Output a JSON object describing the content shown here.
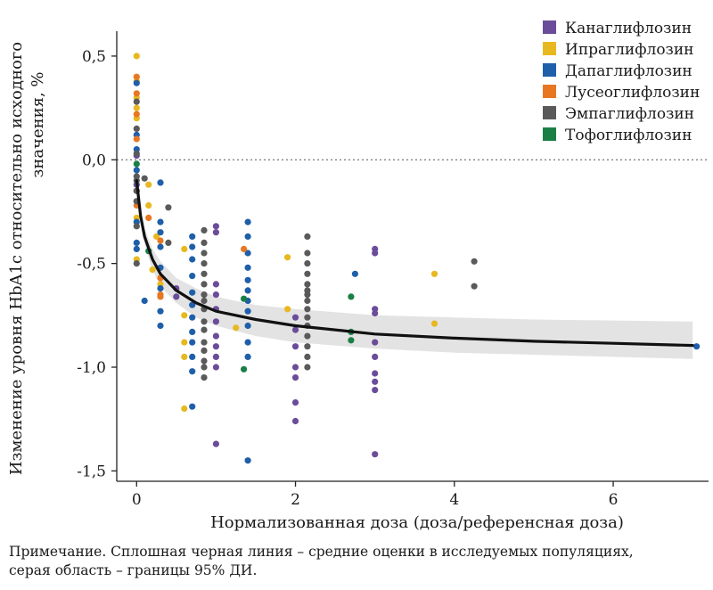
{
  "chart_data": {
    "type": "scatter",
    "xlabel": "Нормализованная доза (доза/референсная доза)",
    "ylabel_line1": "Изменение уровня HbA1c относительно исходного",
    "ylabel_line2": "значения, %",
    "xlim": [
      -0.25,
      7.2
    ],
    "ylim": [
      -1.55,
      0.62
    ],
    "xticks": [
      0,
      2,
      4,
      6
    ],
    "xtick_labels": [
      "0",
      "2",
      "4",
      "6"
    ],
    "yticks": [
      0.5,
      0.0,
      -0.5,
      -1.0,
      -1.5
    ],
    "ytick_labels": [
      "0,5",
      "0,0",
      "-0,5",
      "-1,0",
      "-1,5"
    ],
    "reference_line_y": 0.0,
    "legend_position": "top-right",
    "colors": {
      "Канаглифлозин": "#6B4C9A",
      "Ипраглифлозин": "#E8B820",
      "Дапаглифлозин": "#1F5FAA",
      "Лусеоглифлозин": "#E87722",
      "Эмпаглифлозин": "#5A5A5A",
      "Тофоглифлозин": "#1A7F45"
    },
    "fit_line": {
      "x": [
        0.0,
        0.02,
        0.05,
        0.1,
        0.2,
        0.3,
        0.5,
        0.75,
        1.0,
        1.5,
        2.0,
        3.0,
        4.0,
        5.0,
        6.0,
        7.0
      ],
      "y": [
        -0.1,
        -0.17,
        -0.27,
        -0.37,
        -0.48,
        -0.55,
        -0.63,
        -0.69,
        -0.73,
        -0.77,
        -0.8,
        -0.84,
        -0.86,
        -0.875,
        -0.885,
        -0.895
      ],
      "ci_lower": [
        -0.1,
        -0.19,
        -0.3,
        -0.41,
        -0.53,
        -0.61,
        -0.69,
        -0.76,
        -0.8,
        -0.85,
        -0.88,
        -0.91,
        -0.93,
        -0.94,
        -0.95,
        -0.96
      ],
      "ci_upper": [
        -0.1,
        -0.15,
        -0.24,
        -0.33,
        -0.43,
        -0.49,
        -0.57,
        -0.62,
        -0.66,
        -0.7,
        -0.72,
        -0.75,
        -0.76,
        -0.77,
        -0.775,
        -0.78
      ]
    },
    "series": [
      {
        "name": "Канаглифлозин",
        "points": [
          [
            0.0,
            0.02
          ],
          [
            0.0,
            -0.12
          ],
          [
            0.5,
            -0.62
          ],
          [
            0.5,
            -0.66
          ],
          [
            1.0,
            -0.32
          ],
          [
            1.0,
            -0.35
          ],
          [
            1.0,
            -0.6
          ],
          [
            1.0,
            -0.65
          ],
          [
            1.0,
            -0.72
          ],
          [
            1.0,
            -0.78
          ],
          [
            1.0,
            -0.85
          ],
          [
            1.0,
            -0.9
          ],
          [
            1.0,
            -0.95
          ],
          [
            1.0,
            -1.0
          ],
          [
            1.0,
            -1.37
          ],
          [
            2.0,
            -0.76
          ],
          [
            2.0,
            -0.82
          ],
          [
            2.0,
            -0.9
          ],
          [
            2.0,
            -1.0
          ],
          [
            2.0,
            -1.05
          ],
          [
            2.0,
            -1.17
          ],
          [
            2.0,
            -1.26
          ],
          [
            3.0,
            -0.43
          ],
          [
            3.0,
            -0.45
          ],
          [
            3.0,
            -0.72
          ],
          [
            3.0,
            -0.74
          ],
          [
            3.0,
            -0.88
          ],
          [
            3.0,
            -0.95
          ],
          [
            3.0,
            -1.03
          ],
          [
            3.0,
            -1.07
          ],
          [
            3.0,
            -1.11
          ],
          [
            3.0,
            -1.42
          ]
        ]
      },
      {
        "name": "Ипраглифлозин",
        "points": [
          [
            0.0,
            0.5
          ],
          [
            0.0,
            0.38
          ],
          [
            0.0,
            0.3
          ],
          [
            0.0,
            0.25
          ],
          [
            0.0,
            0.2
          ],
          [
            0.0,
            -0.28
          ],
          [
            0.0,
            -0.48
          ],
          [
            0.15,
            -0.22
          ],
          [
            0.15,
            -0.12
          ],
          [
            0.2,
            -0.53
          ],
          [
            0.25,
            -0.37
          ],
          [
            0.3,
            -0.6
          ],
          [
            0.6,
            -0.43
          ],
          [
            0.6,
            -0.75
          ],
          [
            0.6,
            -0.88
          ],
          [
            0.6,
            -0.95
          ],
          [
            0.6,
            -1.2
          ],
          [
            1.25,
            -0.81
          ],
          [
            1.9,
            -0.47
          ],
          [
            1.9,
            -0.72
          ],
          [
            3.75,
            -0.55
          ],
          [
            3.75,
            -0.79
          ]
        ]
      },
      {
        "name": "Дапаглифлозин",
        "points": [
          [
            0.0,
            0.37
          ],
          [
            0.0,
            0.12
          ],
          [
            0.0,
            0.05
          ],
          [
            0.0,
            -0.05
          ],
          [
            0.0,
            -0.2
          ],
          [
            0.0,
            -0.3
          ],
          [
            0.0,
            -0.4
          ],
          [
            0.0,
            -0.43
          ],
          [
            0.3,
            -0.11
          ],
          [
            0.3,
            -0.3
          ],
          [
            0.3,
            -0.35
          ],
          [
            0.3,
            -0.42
          ],
          [
            0.3,
            -0.52
          ],
          [
            0.3,
            -0.62
          ],
          [
            0.3,
            -0.73
          ],
          [
            0.3,
            -0.8
          ],
          [
            0.1,
            -0.68
          ],
          [
            0.7,
            -0.37
          ],
          [
            0.7,
            -0.42
          ],
          [
            0.7,
            -0.48
          ],
          [
            0.7,
            -0.56
          ],
          [
            0.7,
            -0.64
          ],
          [
            0.7,
            -0.7
          ],
          [
            0.7,
            -0.76
          ],
          [
            0.7,
            -0.83
          ],
          [
            0.7,
            -0.88
          ],
          [
            0.7,
            -0.95
          ],
          [
            0.7,
            -1.02
          ],
          [
            0.7,
            -1.19
          ],
          [
            1.4,
            -0.3
          ],
          [
            1.4,
            -0.37
          ],
          [
            1.4,
            -0.45
          ],
          [
            1.4,
            -0.52
          ],
          [
            1.4,
            -0.58
          ],
          [
            1.4,
            -0.63
          ],
          [
            1.4,
            -0.68
          ],
          [
            1.4,
            -0.73
          ],
          [
            1.4,
            -0.8
          ],
          [
            1.4,
            -0.88
          ],
          [
            1.4,
            -0.95
          ],
          [
            1.4,
            -1.45
          ],
          [
            2.75,
            -0.55
          ],
          [
            7.05,
            -0.9
          ]
        ]
      },
      {
        "name": "Лусеоглифлозин",
        "points": [
          [
            0.0,
            0.4
          ],
          [
            0.0,
            0.32
          ],
          [
            0.0,
            0.22
          ],
          [
            0.0,
            0.1
          ],
          [
            0.0,
            -0.15
          ],
          [
            0.0,
            -0.22
          ],
          [
            0.15,
            -0.28
          ],
          [
            0.3,
            -0.39
          ],
          [
            0.3,
            -0.57
          ],
          [
            0.3,
            -0.65
          ],
          [
            0.3,
            -0.66
          ],
          [
            1.35,
            -0.43
          ]
        ]
      },
      {
        "name": "Эмпаглифлозин",
        "points": [
          [
            0.0,
            0.28
          ],
          [
            0.0,
            0.15
          ],
          [
            0.0,
            0.03
          ],
          [
            0.0,
            -0.08
          ],
          [
            0.0,
            -0.1
          ],
          [
            0.0,
            -0.15
          ],
          [
            0.0,
            -0.2
          ],
          [
            0.0,
            -0.32
          ],
          [
            0.0,
            -0.5
          ],
          [
            0.1,
            -0.09
          ],
          [
            0.4,
            -0.23
          ],
          [
            0.4,
            -0.4
          ],
          [
            0.85,
            -0.34
          ],
          [
            0.85,
            -0.4
          ],
          [
            0.85,
            -0.45
          ],
          [
            0.85,
            -0.5
          ],
          [
            0.85,
            -0.55
          ],
          [
            0.85,
            -0.6
          ],
          [
            0.85,
            -0.65
          ],
          [
            0.85,
            -0.68
          ],
          [
            0.85,
            -0.72
          ],
          [
            0.85,
            -0.78
          ],
          [
            0.85,
            -0.82
          ],
          [
            0.85,
            -0.88
          ],
          [
            0.85,
            -0.92
          ],
          [
            0.85,
            -0.97
          ],
          [
            0.85,
            -1.0
          ],
          [
            0.85,
            -1.05
          ],
          [
            2.15,
            -0.37
          ],
          [
            2.15,
            -0.45
          ],
          [
            2.15,
            -0.5
          ],
          [
            2.15,
            -0.55
          ],
          [
            2.15,
            -0.6
          ],
          [
            2.15,
            -0.63
          ],
          [
            2.15,
            -0.65
          ],
          [
            2.15,
            -0.68
          ],
          [
            2.15,
            -0.72
          ],
          [
            2.15,
            -0.76
          ],
          [
            2.15,
            -0.8
          ],
          [
            2.15,
            -0.85
          ],
          [
            2.15,
            -0.9
          ],
          [
            2.15,
            -0.95
          ],
          [
            2.15,
            -1.0
          ],
          [
            4.25,
            -0.49
          ],
          [
            4.25,
            -0.61
          ]
        ]
      },
      {
        "name": "Тофоглифлозин",
        "points": [
          [
            0.0,
            -0.02
          ],
          [
            0.15,
            -0.44
          ],
          [
            1.35,
            -0.67
          ],
          [
            1.35,
            -1.01
          ],
          [
            2.7,
            -0.66
          ],
          [
            2.7,
            -0.83
          ],
          [
            2.7,
            -0.87
          ]
        ]
      }
    ]
  },
  "note_line1": "Примечание. Сплошная черная линия – средние оценки в исследуемых популяциях,",
  "note_line2": "серая область – границы 95% ДИ."
}
